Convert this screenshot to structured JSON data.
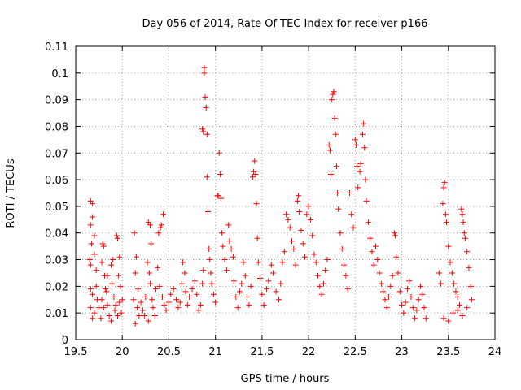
{
  "chart_data": {
    "type": "scatter",
    "title": "Day 056 of 2014, Rate Of TEC Index for receiver p166",
    "xlabel": "GPS time / hours",
    "ylabel": "ROTI / TECUs",
    "xlim": [
      19.5,
      24
    ],
    "ylim": [
      0,
      0.11
    ],
    "x_ticks": [
      19.5,
      20,
      20.5,
      21,
      21.5,
      22,
      22.5,
      23,
      23.5,
      24
    ],
    "x_tick_labels": [
      "19.5",
      "20",
      "20.5",
      "21",
      "21.5",
      "22",
      "22.5",
      "23",
      "23.5",
      "24"
    ],
    "y_ticks": [
      0,
      0.01,
      0.02,
      0.03,
      0.04,
      0.05,
      0.06,
      0.07,
      0.08,
      0.09,
      0.1,
      0.11
    ],
    "y_tick_labels": [
      "0",
      "0.01",
      "0.02",
      "0.03",
      "0.04",
      "0.05",
      "0.06",
      "0.07",
      "0.08",
      "0.09",
      "0.1",
      "0.11"
    ],
    "grid": true,
    "marker": "+",
    "series": [
      {
        "name": "ROTI",
        "color": "#ff0000",
        "points": [
          [
            19.66,
            0.052
          ],
          [
            19.68,
            0.051
          ],
          [
            19.68,
            0.046
          ],
          [
            19.66,
            0.043
          ],
          [
            19.7,
            0.039
          ],
          [
            19.67,
            0.036
          ],
          [
            19.65,
            0.03
          ],
          [
            19.66,
            0.028
          ],
          [
            19.7,
            0.032
          ],
          [
            19.72,
            0.026
          ],
          [
            19.66,
            0.019
          ],
          [
            19.68,
            0.017
          ],
          [
            19.72,
            0.02
          ],
          [
            19.73,
            0.015
          ],
          [
            19.66,
            0.012
          ],
          [
            19.7,
            0.01
          ],
          [
            19.75,
            0.012
          ],
          [
            19.77,
            0.008
          ],
          [
            19.68,
            0.008
          ],
          [
            19.79,
            0.036
          ],
          [
            19.8,
            0.035
          ],
          [
            19.78,
            0.029
          ],
          [
            19.81,
            0.024
          ],
          [
            19.82,
            0.019
          ],
          [
            19.78,
            0.015
          ],
          [
            19.8,
            0.012
          ],
          [
            19.84,
            0.013
          ],
          [
            19.86,
            0.009
          ],
          [
            19.84,
            0.024
          ],
          [
            19.83,
            0.018
          ],
          [
            19.88,
            0.028
          ],
          [
            19.9,
            0.03
          ],
          [
            19.89,
            0.021
          ],
          [
            19.91,
            0.016
          ],
          [
            19.92,
            0.011
          ],
          [
            19.88,
            0.007
          ],
          [
            19.94,
            0.039
          ],
          [
            19.95,
            0.038
          ],
          [
            19.97,
            0.031
          ],
          [
            19.96,
            0.024
          ],
          [
            19.98,
            0.02
          ],
          [
            19.97,
            0.014
          ],
          [
            19.99,
            0.01
          ],
          [
            19.95,
            0.009
          ],
          [
            20.0,
            0.015
          ],
          [
            19.93,
            0.013
          ],
          [
            20.13,
            0.04
          ],
          [
            20.15,
            0.031
          ],
          [
            20.14,
            0.025
          ],
          [
            20.17,
            0.019
          ],
          [
            20.12,
            0.015
          ],
          [
            20.16,
            0.012
          ],
          [
            20.18,
            0.009
          ],
          [
            20.14,
            0.006
          ],
          [
            20.2,
            0.014
          ],
          [
            20.22,
            0.011
          ],
          [
            20.25,
            0.016
          ],
          [
            20.24,
            0.009
          ],
          [
            20.27,
            0.029
          ],
          [
            20.28,
            0.044
          ],
          [
            20.3,
            0.043
          ],
          [
            20.31,
            0.036
          ],
          [
            20.29,
            0.025
          ],
          [
            20.3,
            0.021
          ],
          [
            20.32,
            0.015
          ],
          [
            20.33,
            0.012
          ],
          [
            20.35,
            0.009
          ],
          [
            20.28,
            0.007
          ],
          [
            20.36,
            0.019
          ],
          [
            20.38,
            0.027
          ],
          [
            20.39,
            0.04
          ],
          [
            20.41,
            0.042
          ],
          [
            20.42,
            0.043
          ],
          [
            20.44,
            0.047
          ],
          [
            20.4,
            0.02
          ],
          [
            20.43,
            0.016
          ],
          [
            20.45,
            0.013
          ],
          [
            20.47,
            0.011
          ],
          [
            20.5,
            0.014
          ],
          [
            20.52,
            0.017
          ],
          [
            20.55,
            0.019
          ],
          [
            20.58,
            0.015
          ],
          [
            20.6,
            0.012
          ],
          [
            20.62,
            0.014
          ],
          [
            20.64,
            0.021
          ],
          [
            20.65,
            0.029
          ],
          [
            20.67,
            0.025
          ],
          [
            20.68,
            0.018
          ],
          [
            20.7,
            0.013
          ],
          [
            20.72,
            0.016
          ],
          [
            20.75,
            0.019
          ],
          [
            20.78,
            0.022
          ],
          [
            20.8,
            0.017
          ],
          [
            20.82,
            0.011
          ],
          [
            20.84,
            0.013
          ],
          [
            20.86,
            0.021
          ],
          [
            20.87,
            0.026
          ],
          [
            20.86,
            0.079
          ],
          [
            20.87,
            0.078
          ],
          [
            20.88,
            0.1
          ],
          [
            20.88,
            0.102
          ],
          [
            20.89,
            0.091
          ],
          [
            20.9,
            0.087
          ],
          [
            20.91,
            0.077
          ],
          [
            20.91,
            0.061
          ],
          [
            20.92,
            0.048
          ],
          [
            20.93,
            0.034
          ],
          [
            20.94,
            0.03
          ],
          [
            20.95,
            0.025
          ],
          [
            20.96,
            0.021
          ],
          [
            20.98,
            0.017
          ],
          [
            21.0,
            0.014
          ],
          [
            21.02,
            0.054
          ],
          [
            21.03,
            0.054
          ],
          [
            21.04,
            0.07
          ],
          [
            21.05,
            0.062
          ],
          [
            21.06,
            0.053
          ],
          [
            21.07,
            0.04
          ],
          [
            21.08,
            0.035
          ],
          [
            21.1,
            0.03
          ],
          [
            21.12,
            0.026
          ],
          [
            21.14,
            0.043
          ],
          [
            21.15,
            0.037
          ],
          [
            21.17,
            0.034
          ],
          [
            21.19,
            0.031
          ],
          [
            21.2,
            0.022
          ],
          [
            21.22,
            0.016
          ],
          [
            21.24,
            0.012
          ],
          [
            21.26,
            0.018
          ],
          [
            21.28,
            0.021
          ],
          [
            21.3,
            0.029
          ],
          [
            21.32,
            0.024
          ],
          [
            21.34,
            0.016
          ],
          [
            21.36,
            0.013
          ],
          [
            21.38,
            0.02
          ],
          [
            21.4,
            0.061
          ],
          [
            21.41,
            0.063
          ],
          [
            21.42,
            0.067
          ],
          [
            21.43,
            0.062
          ],
          [
            21.44,
            0.051
          ],
          [
            21.45,
            0.038
          ],
          [
            21.46,
            0.029
          ],
          [
            21.48,
            0.023
          ],
          [
            21.5,
            0.017
          ],
          [
            21.52,
            0.013
          ],
          [
            21.55,
            0.019
          ],
          [
            21.57,
            0.022
          ],
          [
            21.6,
            0.028
          ],
          [
            21.62,
            0.025
          ],
          [
            21.65,
            0.018
          ],
          [
            21.68,
            0.015
          ],
          [
            21.7,
            0.021
          ],
          [
            21.72,
            0.029
          ],
          [
            21.74,
            0.033
          ],
          [
            21.76,
            0.047
          ],
          [
            21.78,
            0.045
          ],
          [
            21.8,
            0.042
          ],
          [
            21.82,
            0.037
          ],
          [
            21.84,
            0.034
          ],
          [
            21.86,
            0.028
          ],
          [
            21.88,
            0.052
          ],
          [
            21.89,
            0.054
          ],
          [
            21.9,
            0.048
          ],
          [
            21.92,
            0.041
          ],
          [
            21.94,
            0.036
          ],
          [
            21.96,
            0.031
          ],
          [
            21.98,
            0.047
          ],
          [
            22.0,
            0.05
          ],
          [
            22.02,
            0.045
          ],
          [
            22.04,
            0.039
          ],
          [
            22.06,
            0.032
          ],
          [
            22.08,
            0.029
          ],
          [
            22.1,
            0.024
          ],
          [
            22.12,
            0.02
          ],
          [
            22.14,
            0.017
          ],
          [
            22.16,
            0.021
          ],
          [
            22.18,
            0.026
          ],
          [
            22.2,
            0.03
          ],
          [
            22.22,
            0.073
          ],
          [
            22.23,
            0.071
          ],
          [
            22.24,
            0.062
          ],
          [
            22.25,
            0.09
          ],
          [
            22.26,
            0.092
          ],
          [
            22.27,
            0.093
          ],
          [
            22.28,
            0.083
          ],
          [
            22.29,
            0.077
          ],
          [
            22.3,
            0.065
          ],
          [
            22.31,
            0.055
          ],
          [
            22.32,
            0.049
          ],
          [
            22.34,
            0.04
          ],
          [
            22.36,
            0.034
          ],
          [
            22.38,
            0.028
          ],
          [
            22.4,
            0.024
          ],
          [
            22.42,
            0.019
          ],
          [
            22.44,
            0.055
          ],
          [
            22.46,
            0.047
          ],
          [
            22.48,
            0.042
          ],
          [
            22.5,
            0.075
          ],
          [
            22.51,
            0.073
          ],
          [
            22.52,
            0.065
          ],
          [
            22.53,
            0.057
          ],
          [
            22.55,
            0.063
          ],
          [
            22.56,
            0.066
          ],
          [
            22.58,
            0.077
          ],
          [
            22.59,
            0.081
          ],
          [
            22.6,
            0.072
          ],
          [
            22.61,
            0.06
          ],
          [
            22.62,
            0.052
          ],
          [
            22.64,
            0.044
          ],
          [
            22.66,
            0.038
          ],
          [
            22.68,
            0.033
          ],
          [
            22.7,
            0.028
          ],
          [
            22.72,
            0.035
          ],
          [
            22.74,
            0.03
          ],
          [
            22.76,
            0.025
          ],
          [
            22.78,
            0.021
          ],
          [
            22.8,
            0.018
          ],
          [
            22.82,
            0.015
          ],
          [
            22.84,
            0.012
          ],
          [
            22.86,
            0.016
          ],
          [
            22.88,
            0.02
          ],
          [
            22.9,
            0.024
          ],
          [
            22.92,
            0.04
          ],
          [
            22.93,
            0.039
          ],
          [
            22.94,
            0.031
          ],
          [
            22.96,
            0.025
          ],
          [
            22.98,
            0.018
          ],
          [
            23.0,
            0.013
          ],
          [
            23.02,
            0.01
          ],
          [
            23.04,
            0.014
          ],
          [
            23.06,
            0.019
          ],
          [
            23.08,
            0.022
          ],
          [
            23.1,
            0.016
          ],
          [
            23.12,
            0.012
          ],
          [
            23.14,
            0.008
          ],
          [
            23.16,
            0.011
          ],
          [
            23.18,
            0.015
          ],
          [
            23.2,
            0.02
          ],
          [
            23.22,
            0.017
          ],
          [
            23.24,
            0.012
          ],
          [
            23.26,
            0.008
          ],
          [
            23.4,
            0.025
          ],
          [
            23.42,
            0.021
          ],
          [
            23.44,
            0.051
          ],
          [
            23.45,
            0.057
          ],
          [
            23.46,
            0.059
          ],
          [
            23.47,
            0.047
          ],
          [
            23.48,
            0.044
          ],
          [
            23.5,
            0.035
          ],
          [
            23.52,
            0.029
          ],
          [
            23.54,
            0.025
          ],
          [
            23.56,
            0.021
          ],
          [
            23.58,
            0.018
          ],
          [
            23.6,
            0.016
          ],
          [
            23.62,
            0.013
          ],
          [
            23.64,
            0.049
          ],
          [
            23.65,
            0.047
          ],
          [
            23.66,
            0.044
          ],
          [
            23.67,
            0.04
          ],
          [
            23.68,
            0.038
          ],
          [
            23.7,
            0.033
          ],
          [
            23.72,
            0.027
          ],
          [
            23.74,
            0.02
          ],
          [
            23.75,
            0.015
          ],
          [
            23.45,
            0.008
          ],
          [
            23.5,
            0.007
          ],
          [
            23.55,
            0.01
          ],
          [
            23.6,
            0.011
          ],
          [
            23.65,
            0.009
          ],
          [
            23.7,
            0.012
          ]
        ]
      }
    ]
  }
}
